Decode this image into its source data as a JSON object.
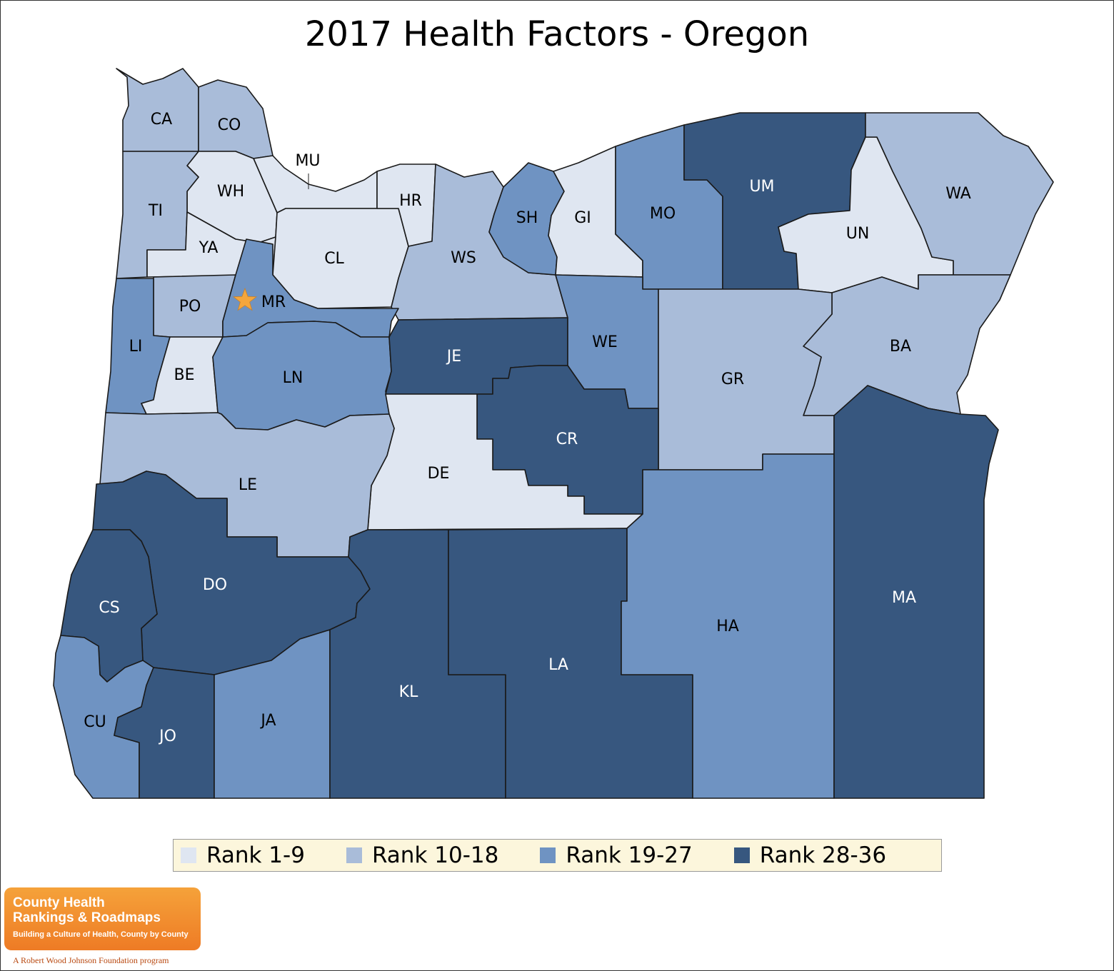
{
  "title": "2017 Health Factors - Oregon",
  "colors": {
    "rank_1_9": "#dfe6f1",
    "rank_10_18": "#a9bcd9",
    "rank_19_27": "#6f93c2",
    "rank_28_36": "#37577f",
    "star": "#f4a63d",
    "legend_bg": "#fcf6dc"
  },
  "legend": [
    {
      "label": "Rank 1-9",
      "color": "#dfe6f1"
    },
    {
      "label": "Rank 10-18",
      "color": "#a9bcd9"
    },
    {
      "label": "Rank 19-27",
      "color": "#6f93c2"
    },
    {
      "label": "Rank 28-36",
      "color": "#37577f"
    }
  ],
  "counties": [
    {
      "abbr": "CA",
      "rank_group": "10-18"
    },
    {
      "abbr": "CO",
      "rank_group": "10-18"
    },
    {
      "abbr": "MU",
      "rank_group": "1-9"
    },
    {
      "abbr": "WH",
      "rank_group": "1-9"
    },
    {
      "abbr": "TI",
      "rank_group": "10-18"
    },
    {
      "abbr": "YA",
      "rank_group": "1-9"
    },
    {
      "abbr": "CL",
      "rank_group": "1-9"
    },
    {
      "abbr": "HR",
      "rank_group": "1-9"
    },
    {
      "abbr": "WS",
      "rank_group": "10-18"
    },
    {
      "abbr": "SH",
      "rank_group": "19-27"
    },
    {
      "abbr": "GI",
      "rank_group": "1-9"
    },
    {
      "abbr": "MO",
      "rank_group": "19-27"
    },
    {
      "abbr": "UM",
      "rank_group": "28-36"
    },
    {
      "abbr": "UN",
      "rank_group": "1-9"
    },
    {
      "abbr": "WA",
      "rank_group": "10-18"
    },
    {
      "abbr": "PO",
      "rank_group": "10-18"
    },
    {
      "abbr": "MR",
      "rank_group": "19-27"
    },
    {
      "abbr": "LI",
      "rank_group": "19-27"
    },
    {
      "abbr": "BE",
      "rank_group": "1-9"
    },
    {
      "abbr": "LN",
      "rank_group": "19-27"
    },
    {
      "abbr": "JE",
      "rank_group": "28-36"
    },
    {
      "abbr": "WE",
      "rank_group": "19-27"
    },
    {
      "abbr": "BA",
      "rank_group": "10-18"
    },
    {
      "abbr": "GR",
      "rank_group": "10-18"
    },
    {
      "abbr": "CR",
      "rank_group": "28-36"
    },
    {
      "abbr": "DE",
      "rank_group": "1-9"
    },
    {
      "abbr": "LE",
      "rank_group": "10-18"
    },
    {
      "abbr": "DO",
      "rank_group": "28-36"
    },
    {
      "abbr": "CS",
      "rank_group": "28-36"
    },
    {
      "abbr": "CU",
      "rank_group": "19-27"
    },
    {
      "abbr": "JO",
      "rank_group": "28-36"
    },
    {
      "abbr": "JA",
      "rank_group": "19-27"
    },
    {
      "abbr": "KL",
      "rank_group": "28-36"
    },
    {
      "abbr": "LA",
      "rank_group": "28-36"
    },
    {
      "abbr": "HA",
      "rank_group": "19-27"
    },
    {
      "abbr": "MA",
      "rank_group": "28-36"
    }
  ],
  "state_capital_marker": "star",
  "logo": {
    "line1": "County Health",
    "line2": "Rankings & Roadmaps",
    "tagline": "Building a Culture of Health, County by County",
    "footer": "A Robert Wood Johnson Foundation program"
  }
}
